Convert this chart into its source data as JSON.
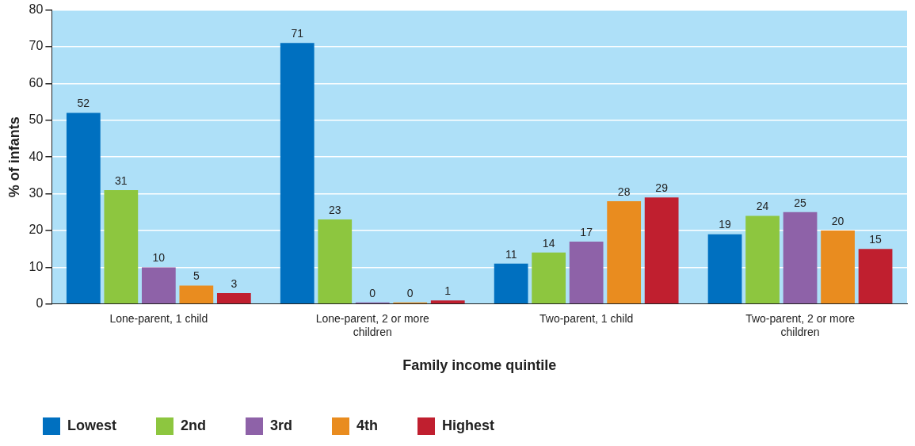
{
  "chart_data": {
    "type": "bar",
    "xlabel": "Family income quintile",
    "ylabel": "% of infants",
    "categories": [
      "Lone-parent, 1 child",
      "Lone-parent, 2 or more children",
      "Two-parent, 1 child",
      "Two-parent, 2 or more children"
    ],
    "series": [
      {
        "name": "Lowest",
        "color": "#0070c0",
        "values": [
          52,
          71,
          11,
          19
        ]
      },
      {
        "name": "2nd",
        "color": "#8dc63f",
        "values": [
          31,
          23,
          14,
          24
        ]
      },
      {
        "name": "3rd",
        "color": "#8e62a8",
        "values": [
          10,
          0,
          17,
          25
        ]
      },
      {
        "name": "4th",
        "color": "#e98c1f",
        "values": [
          5,
          0,
          28,
          20
        ]
      },
      {
        "name": "Highest",
        "color": "#c01f2f",
        "values": [
          3,
          1,
          29,
          15
        ]
      }
    ],
    "ylim": [
      0,
      80
    ],
    "yticks": [
      0,
      10,
      20,
      30,
      40,
      50,
      60,
      70,
      80
    ],
    "grid": "y",
    "legend": "bottom",
    "data_labels": true
  }
}
